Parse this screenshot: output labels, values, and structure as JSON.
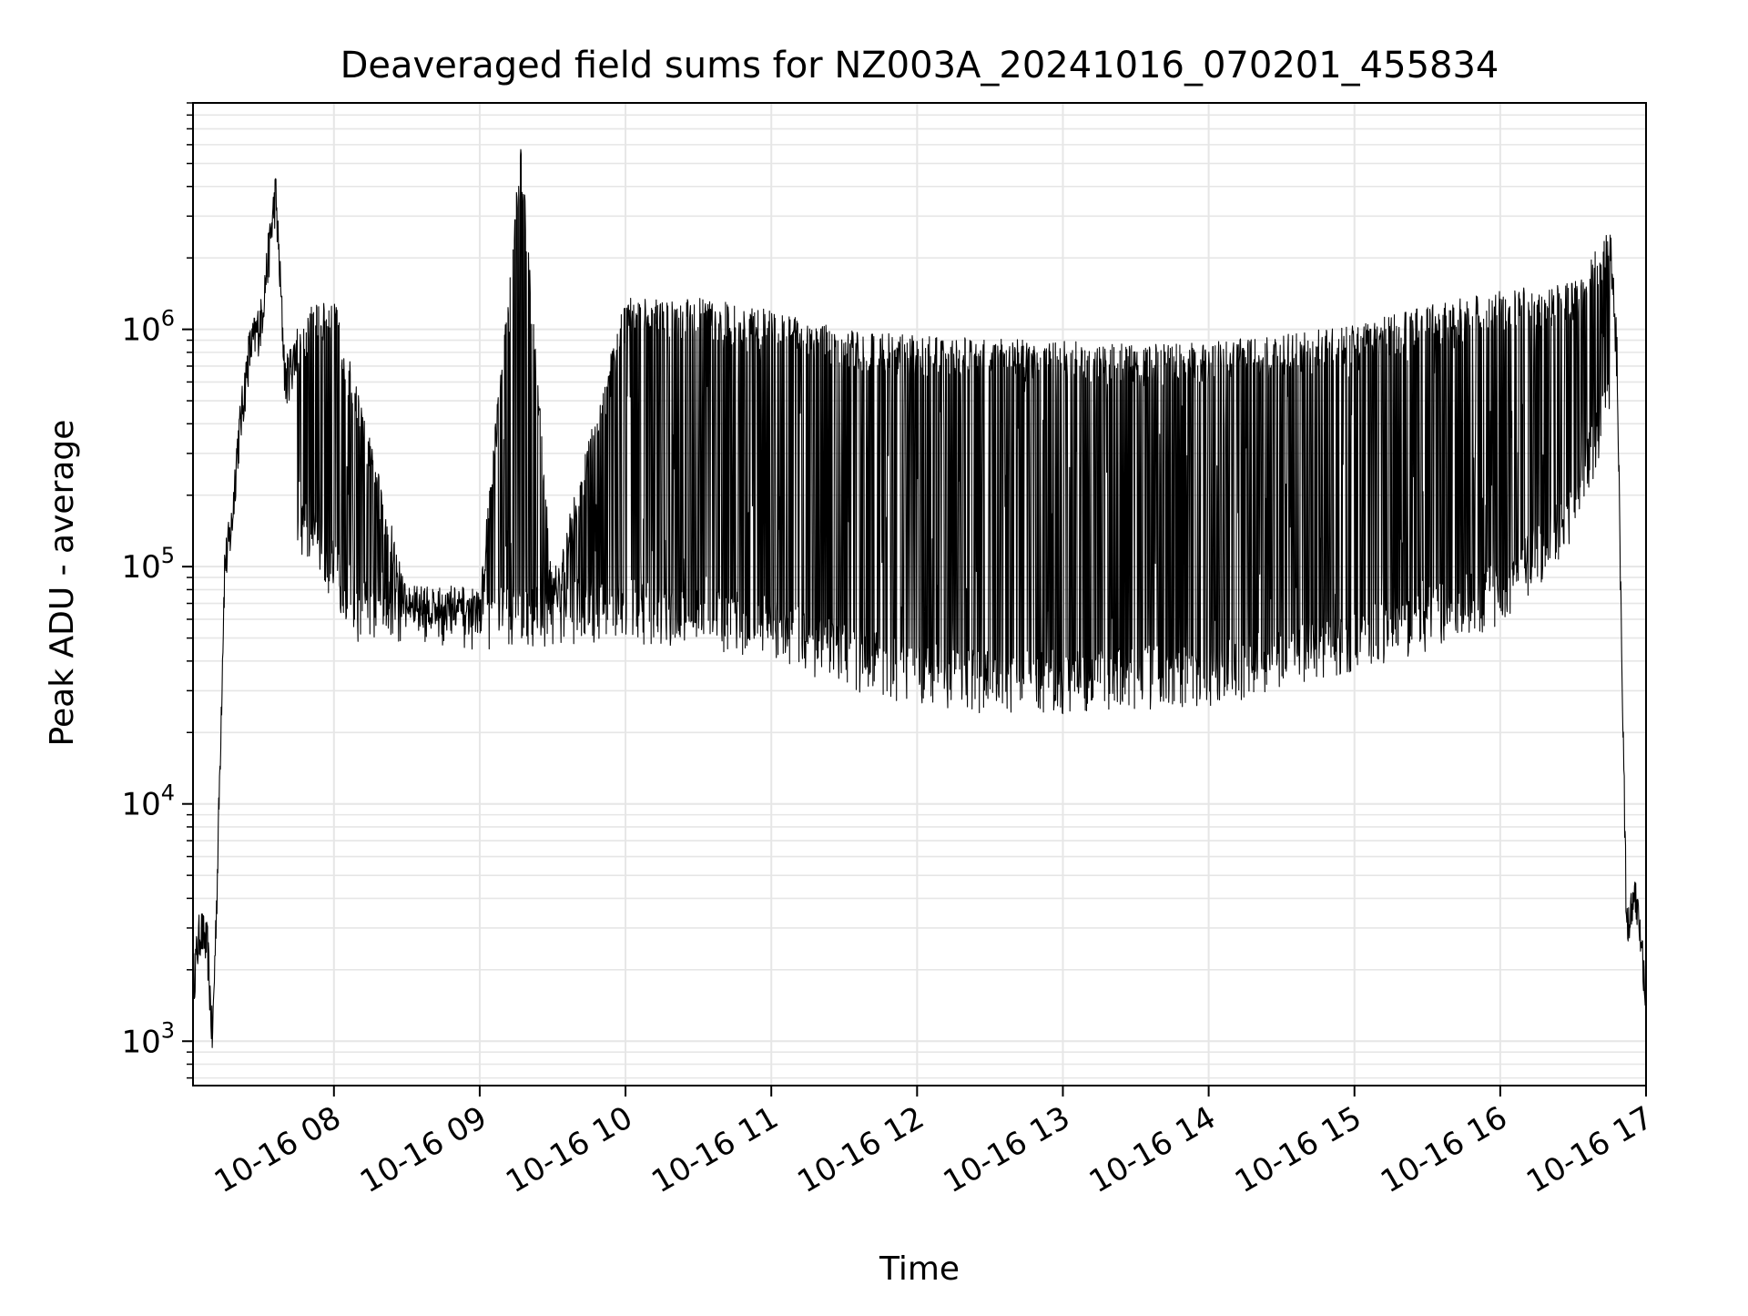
{
  "chart_data": {
    "type": "line",
    "title": "Deaveraged field sums for NZ003A_20241016_070201_455834",
    "xlabel": "Time",
    "ylabel": "Peak ADU - average",
    "y_scale": "log",
    "grid": true,
    "legend": "none",
    "line_color": "#000000",
    "grid_color": "#e6e6e6",
    "xlim": [
      "10-16 07:02",
      "10-16 17:00"
    ],
    "ylim": [
      650,
      9000000
    ],
    "x_ticks": [
      "10-16 08",
      "10-16 09",
      "10-16 10",
      "10-16 11",
      "10-16 12",
      "10-16 13",
      "10-16 14",
      "10-16 15",
      "10-16 16",
      "10-16 17"
    ],
    "y_ticks": [
      {
        "value": 1000,
        "base": "10",
        "exp": "3"
      },
      {
        "value": 10000,
        "base": "10",
        "exp": "4"
      },
      {
        "value": 100000,
        "base": "10",
        "exp": "5"
      },
      {
        "value": 1000000,
        "base": "10",
        "exp": "6"
      }
    ],
    "series": [
      {
        "points": [
          {
            "x": "10-16 07:02",
            "y": 1800
          },
          {
            "x": "10-16 07:05",
            "y": 3000
          },
          {
            "x": "10-16 07:08",
            "y": 2500
          },
          {
            "x": "10-16 07:10",
            "y": 1000
          },
          {
            "x": "10-16 07:12",
            "y": 5000
          },
          {
            "x": "10-16 07:15",
            "y": 100000
          },
          {
            "x": "10-16 07:18",
            "y": 150000
          },
          {
            "x": "10-16 07:20",
            "y": 300000
          },
          {
            "x": "10-16 07:25",
            "y": 800000
          },
          {
            "x": "10-16 07:30",
            "y": 1100000
          },
          {
            "x": "10-16 07:36",
            "y": 3800000
          },
          {
            "x": "10-16 07:40",
            "y": 600000
          },
          {
            "x": "10-16 07:50",
            "y": 1200000
          },
          {
            "x": "10-16 08:00",
            "y": 1300000
          },
          {
            "x": "10-16 08:30",
            "y": 80000
          },
          {
            "x": "10-16 09:00",
            "y": 75000
          },
          {
            "x": "10-16 09:17",
            "y": 6000000
          },
          {
            "x": "10-16 09:30",
            "y": 85000
          },
          {
            "x": "10-16 10:00",
            "y": 1300000
          },
          {
            "x": "10-16 10:30",
            "y": 1300000
          },
          {
            "x": "10-16 11:00",
            "y": 1150000
          },
          {
            "x": "10-16 11:30",
            "y": 950000
          },
          {
            "x": "10-16 12:00",
            "y": 900000
          },
          {
            "x": "10-16 12:30",
            "y": 870000
          },
          {
            "x": "10-16 13:00",
            "y": 850000
          },
          {
            "x": "10-16 13:30",
            "y": 820000
          },
          {
            "x": "10-16 14:00",
            "y": 850000
          },
          {
            "x": "10-16 14:30",
            "y": 900000
          },
          {
            "x": "10-16 15:00",
            "y": 1000000
          },
          {
            "x": "10-16 15:30",
            "y": 1200000
          },
          {
            "x": "10-16 16:00",
            "y": 1400000
          },
          {
            "x": "10-16 16:30",
            "y": 1500000
          },
          {
            "x": "10-16 16:45",
            "y": 2500000
          },
          {
            "x": "10-16 16:48",
            "y": 800000
          },
          {
            "x": "10-16 16:52",
            "y": 3000
          },
          {
            "x": "10-16 16:56",
            "y": 4000
          },
          {
            "x": "10-16 17:00",
            "y": 1700
          }
        ],
        "envelope_lower": [
          {
            "x": "10-16 07:45",
            "y": 150000
          },
          {
            "x": "10-16 08:10",
            "y": 60000
          },
          {
            "x": "10-16 09:00",
            "y": 55000
          },
          {
            "x": "10-16 10:00",
            "y": 60000
          },
          {
            "x": "10-16 11:00",
            "y": 50000
          },
          {
            "x": "10-16 11:30",
            "y": 38000
          },
          {
            "x": "10-16 12:00",
            "y": 32000
          },
          {
            "x": "10-16 12:30",
            "y": 30000
          },
          {
            "x": "10-16 13:00",
            "y": 30000
          },
          {
            "x": "10-16 14:00",
            "y": 32000
          },
          {
            "x": "10-16 14:30",
            "y": 36000
          },
          {
            "x": "10-16 15:00",
            "y": 45000
          },
          {
            "x": "10-16 15:30",
            "y": 55000
          },
          {
            "x": "10-16 16:00",
            "y": 70000
          },
          {
            "x": "10-16 16:30",
            "y": 150000
          },
          {
            "x": "10-16 16:45",
            "y": 500000
          }
        ]
      }
    ]
  }
}
